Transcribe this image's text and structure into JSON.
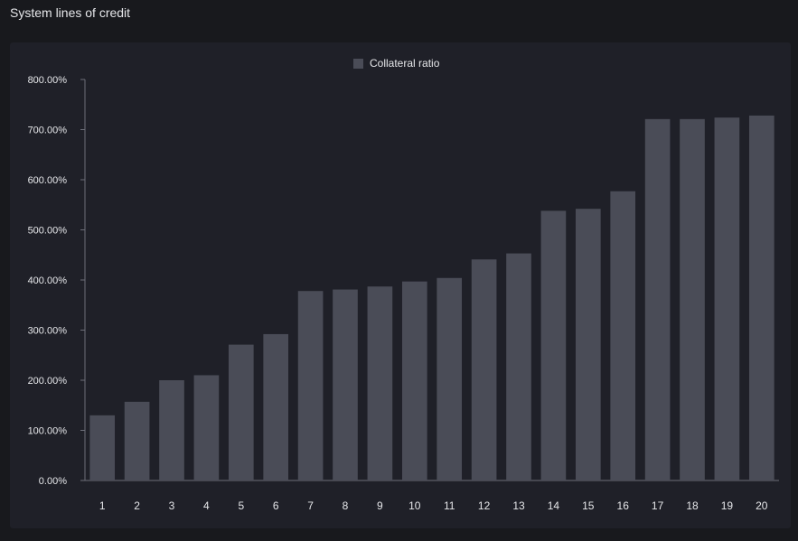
{
  "page": {
    "title": "System lines of credit"
  },
  "colors": {
    "background": "#18191d",
    "panel": "#1f2028",
    "bar": "#4a4c57",
    "axis": "#6c6e78",
    "text": "#e6e7ea"
  },
  "chart_data": {
    "type": "bar",
    "title": "",
    "xlabel": "",
    "ylabel": "",
    "legend": {
      "placement": "top-center",
      "entries": [
        "Collateral ratio"
      ]
    },
    "categories": [
      "1",
      "2",
      "3",
      "4",
      "5",
      "6",
      "7",
      "8",
      "9",
      "10",
      "11",
      "12",
      "13",
      "14",
      "15",
      "16",
      "17",
      "18",
      "19",
      "20"
    ],
    "series": [
      {
        "name": "Collateral ratio",
        "values": [
          130,
          157,
          200,
          210,
          271,
          292,
          378,
          381,
          387,
          397,
          404,
          441,
          453,
          538,
          542,
          577,
          721,
          721,
          724,
          728
        ]
      }
    ],
    "ylim": [
      0,
      800
    ],
    "yticks": [
      "0.00%",
      "100.00%",
      "200.00%",
      "300.00%",
      "400.00%",
      "500.00%",
      "600.00%",
      "700.00%",
      "800.00%"
    ],
    "grid": false
  }
}
